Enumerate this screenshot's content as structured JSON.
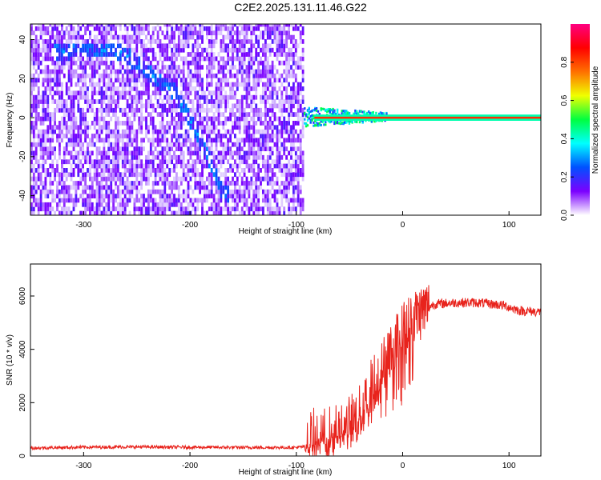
{
  "figure": {
    "title": "C2E2.2025.131.11.46.G22"
  },
  "chart_data": [
    {
      "type": "heatmap",
      "xlabel": "Height of straight line (km)",
      "ylabel": "Frequency (Hz)",
      "xlim": [
        -350,
        130
      ],
      "ylim": [
        -50,
        48
      ],
      "xticks": [
        -300,
        -200,
        -100,
        0,
        100
      ],
      "yticks": [
        -40,
        -20,
        0,
        20,
        40
      ],
      "grid": false,
      "noise_region_x": [
        -350,
        -93
      ],
      "trace": {
        "description_x": [
          -320,
          -290,
          -265,
          -240,
          -215,
          -195,
          -180,
          -170
        ],
        "description_y": [
          33,
          34,
          33,
          22,
          12,
          -8,
          -26,
          -40
        ]
      },
      "carrier": {
        "freq": 0,
        "x_start": -93,
        "x_end": 130,
        "scatter_until_x": -15
      },
      "colorbar": {
        "label": "Normalized spectral amplitude",
        "ticks": [
          0.0,
          0.2,
          0.4,
          0.6,
          0.8
        ],
        "range": [
          0,
          1
        ],
        "colors": [
          "#ffffff",
          "#7b00ff",
          "#0050ff",
          "#00ffff",
          "#00ff40",
          "#f0ff00",
          "#ff7000",
          "#ff0000",
          "#ff0080"
        ]
      }
    },
    {
      "type": "line",
      "xlabel": "Height of straight line (km)",
      "ylabel": "SNR (10 * v/v)",
      "xlim": [
        -350,
        130
      ],
      "ylim": [
        0,
        7200
      ],
      "xticks": [
        -300,
        -200,
        -100,
        0,
        100
      ],
      "yticks": [
        0,
        2000,
        4000,
        6000
      ],
      "grid": false,
      "color": "#e8231c",
      "series": [
        {
          "x": [
            -350,
            -300,
            -250,
            -200,
            -150,
            -100,
            -92,
            -85,
            -70,
            -55,
            -40,
            -30,
            -20,
            -10,
            0,
            10,
            20,
            30,
            50,
            70,
            95,
            110,
            130
          ],
          "y": [
            300,
            330,
            340,
            330,
            320,
            320,
            350,
            700,
            800,
            1000,
            1600,
            2600,
            3300,
            4100,
            4700,
            5200,
            5500,
            5700,
            5750,
            5750,
            5650,
            5450,
            5400
          ]
        }
      ]
    }
  ]
}
